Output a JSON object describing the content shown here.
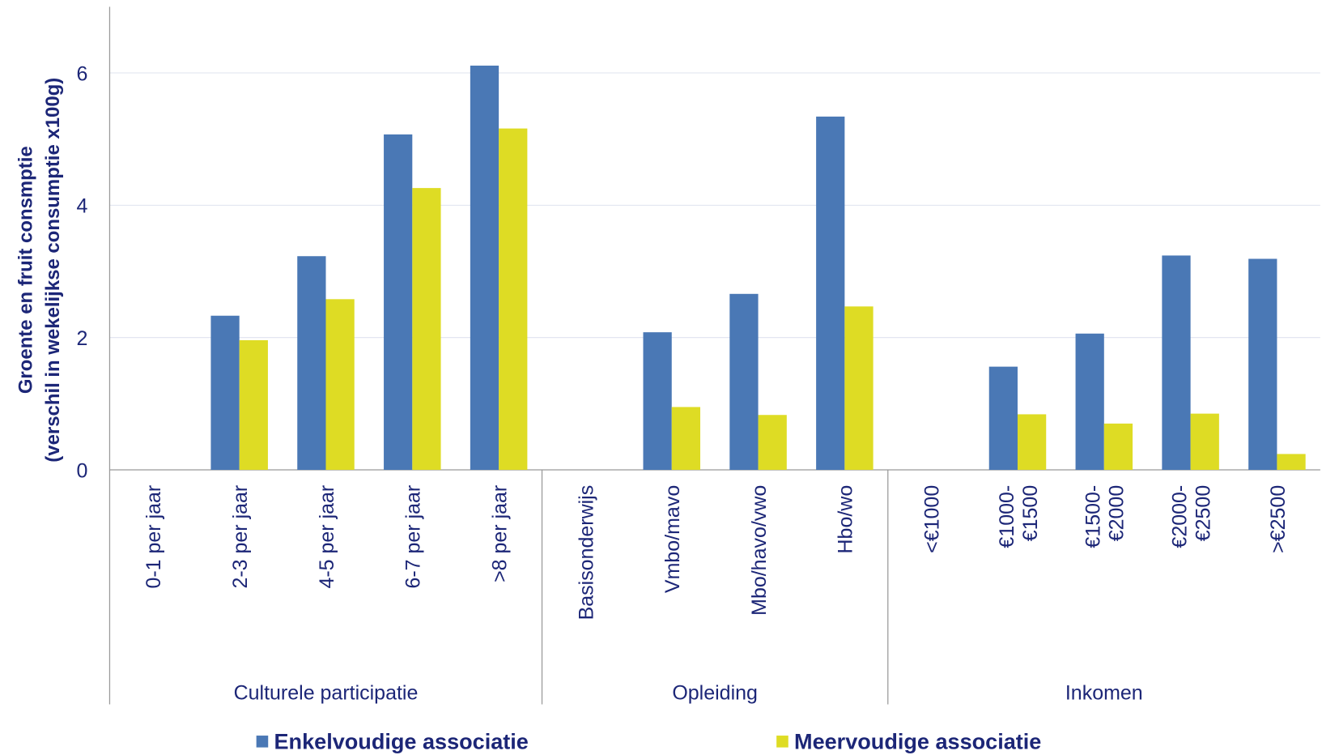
{
  "chart_data": {
    "type": "bar",
    "y_label": [
      "Groente en fruit consmptie",
      "(verschil in wekelijkse consumptie x100g)"
    ],
    "groups": [
      {
        "label": "Culturele participatie",
        "categories": [
          "0-1 per jaar",
          "2-3 per jaar",
          "4-5 per jaar",
          "6-7 per jaar",
          ">8 per jaar"
        ]
      },
      {
        "label": "Opleiding",
        "categories": [
          "Basisonderwijs",
          "Vmbo/mavo",
          "Mbo/havo/vwo",
          "Hbo/wo"
        ]
      },
      {
        "label": "Inkomen",
        "categories": [
          "<€1000",
          "€1000-\n€1500",
          "€1500-\n€2000",
          "€2000-\n€2500",
          ">€2500"
        ]
      }
    ],
    "series": [
      {
        "name": "Enkelvoudige associatie",
        "color": "#4a78b5",
        "values": [
          null,
          2.33,
          3.23,
          5.07,
          6.11,
          null,
          2.08,
          2.66,
          5.34,
          null,
          1.56,
          2.06,
          3.24,
          3.19
        ]
      },
      {
        "name": "Meervoudige associatie",
        "color": "#dedc24",
        "values": [
          null,
          1.96,
          2.58,
          4.26,
          5.16,
          null,
          0.95,
          0.83,
          2.47,
          null,
          0.84,
          0.7,
          0.85,
          0.24
        ]
      }
    ],
    "ylim": [
      0,
      7
    ],
    "yticks": [
      0,
      2,
      4,
      6
    ],
    "grid": true
  }
}
